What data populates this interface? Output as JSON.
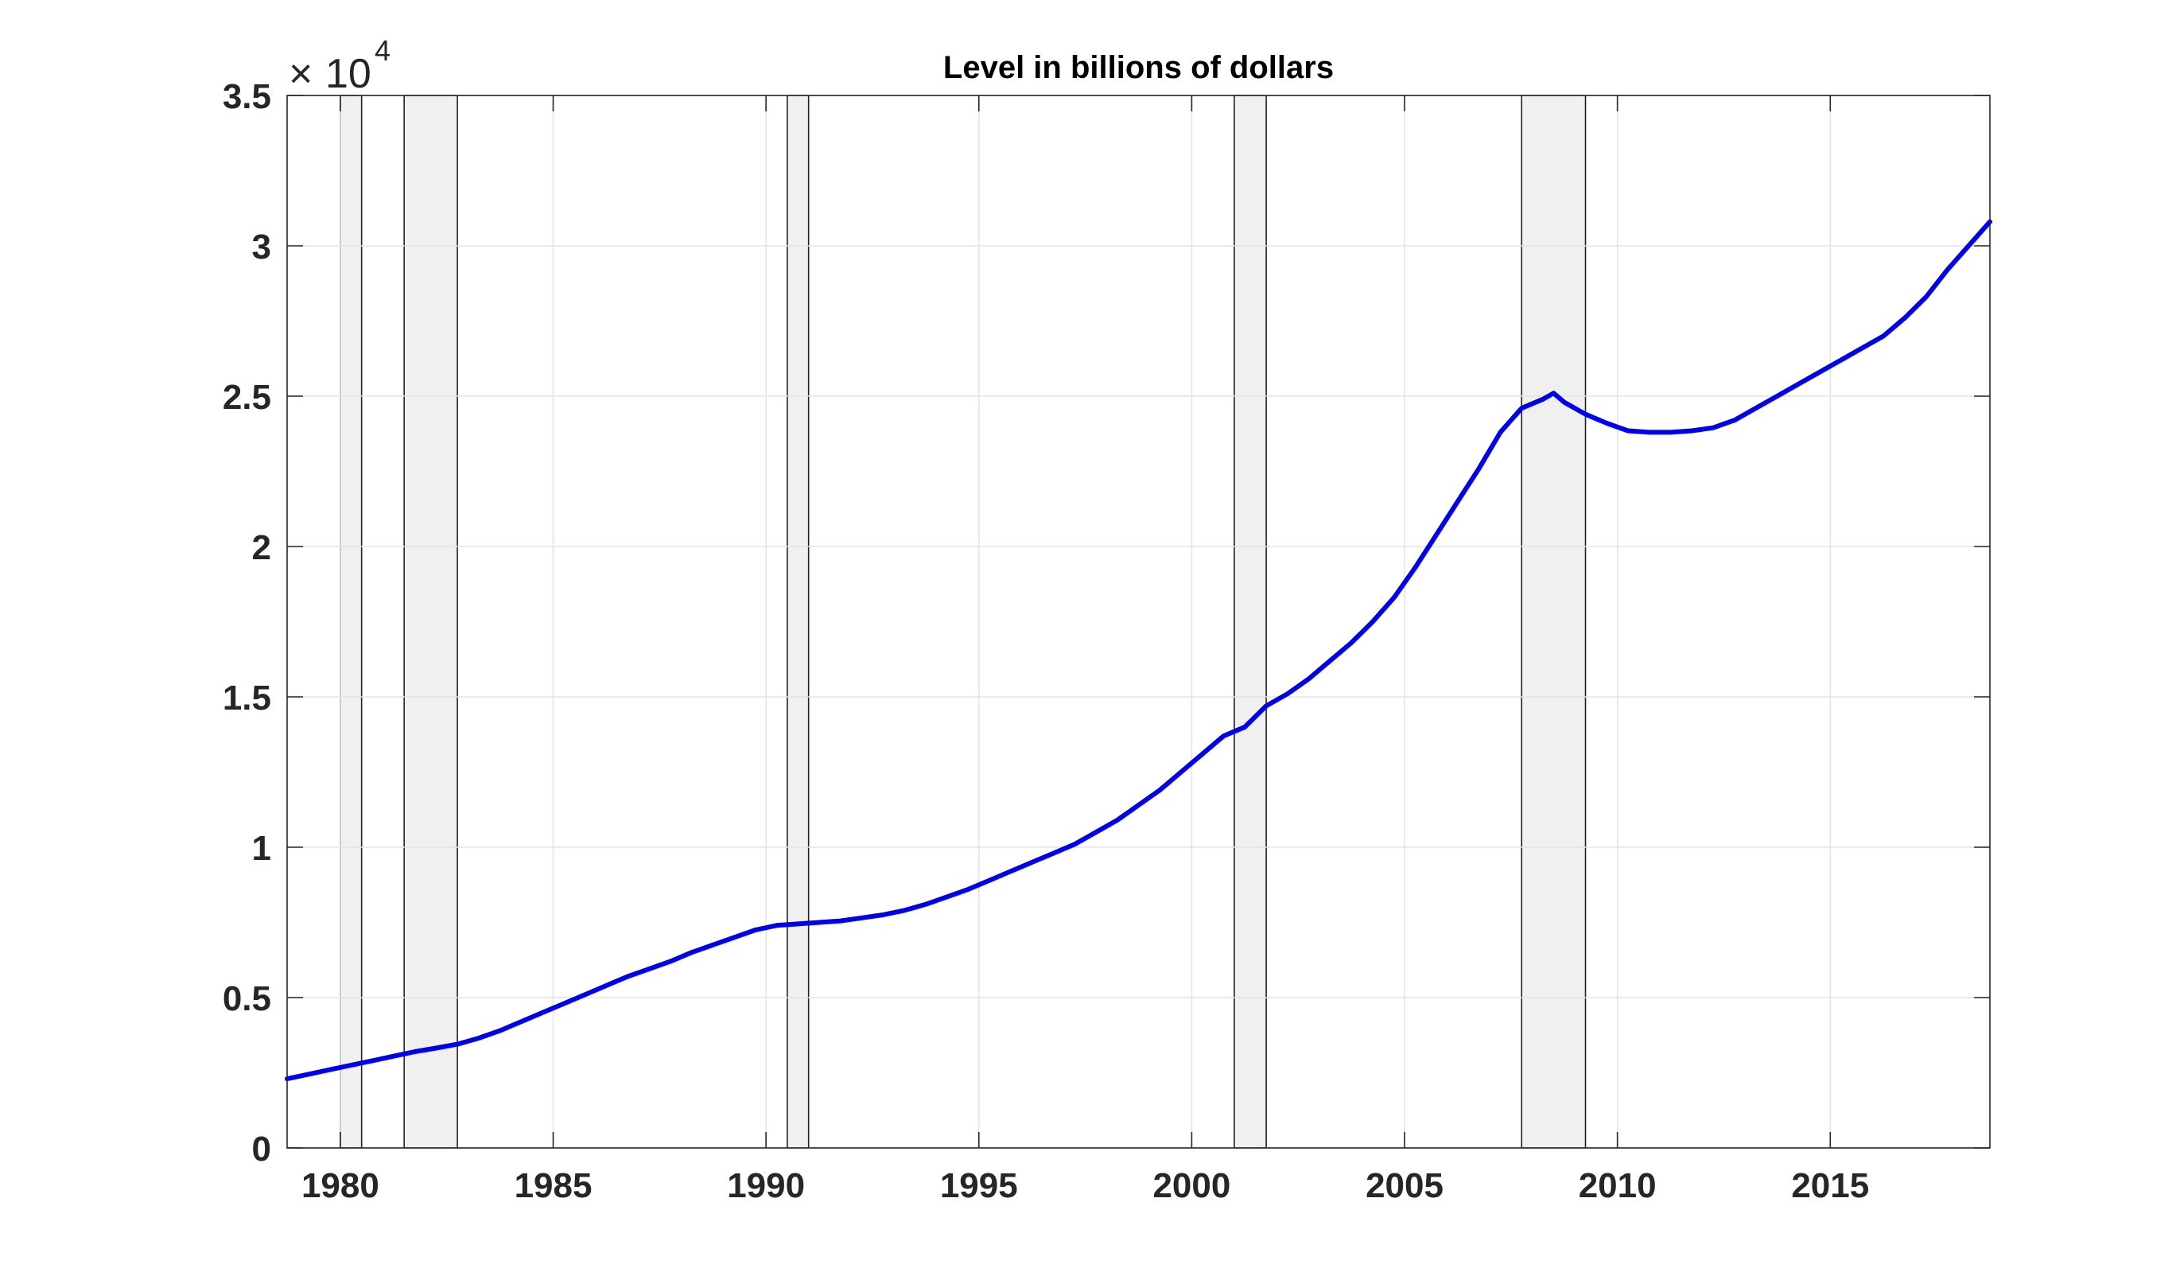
{
  "chart_data": {
    "type": "line",
    "title": "Level in billions of dollars",
    "xlabel": "",
    "ylabel": "",
    "exponent_base": "10",
    "exponent_power": "4",
    "xlim": [
      1978.75,
      2018.75
    ],
    "ylim": [
      0,
      3.5
    ],
    "x_ticks": [
      1980,
      1985,
      1990,
      1995,
      2000,
      2005,
      2010,
      2015
    ],
    "x_tick_labels": [
      "1980",
      "1985",
      "1990",
      "1995",
      "2000",
      "2005",
      "2010",
      "2015"
    ],
    "y_ticks": [
      0,
      0.5,
      1,
      1.5,
      2,
      2.5,
      3,
      3.5
    ],
    "y_tick_labels": [
      "0",
      "0.5",
      "1",
      "1.5",
      "2",
      "2.5",
      "3",
      "3.5"
    ],
    "grid": true,
    "line_color": "#0000ee",
    "recession_color": "#f0f0f0",
    "recessions": [
      [
        1980.0,
        1980.5
      ],
      [
        1981.5,
        1982.75
      ],
      [
        1990.5,
        1991.0
      ],
      [
        2001.0,
        2001.75
      ],
      [
        2007.75,
        2009.25
      ]
    ],
    "series": [
      {
        "x": [
          1978.75,
          1979.25,
          1979.75,
          1980.25,
          1980.75,
          1981.25,
          1981.75,
          1982.25,
          1982.75,
          1983.25,
          1983.75,
          1984.25,
          1984.75,
          1985.25,
          1985.75,
          1986.25,
          1986.75,
          1987.25,
          1987.75,
          1988.25,
          1988.75,
          1989.25,
          1989.75,
          1990.25,
          1990.75,
          1991.25,
          1991.75,
          1992.25,
          1992.75,
          1993.25,
          1993.75,
          1994.25,
          1994.75,
          1995.25,
          1995.75,
          1996.25,
          1996.75,
          1997.25,
          1997.75,
          1998.25,
          1998.75,
          1999.25,
          1999.75,
          2000.25,
          2000.75,
          2001.25,
          2001.75,
          2002.25,
          2002.75,
          2003.25,
          2003.75,
          2004.25,
          2004.75,
          2005.25,
          2005.75,
          2006.25,
          2006.75,
          2007.25,
          2007.75,
          2008.25,
          2008.5,
          2008.75,
          2009.25,
          2009.75,
          2010.25,
          2010.75,
          2011.25,
          2011.75,
          2012.25,
          2012.75,
          2013.25,
          2013.75,
          2014.25,
          2014.75,
          2015.25,
          2015.75,
          2016.25,
          2016.75,
          2017.25,
          2017.75,
          2018.25,
          2018.75
        ],
        "values": [
          0.23,
          0.245,
          0.26,
          0.275,
          0.29,
          0.305,
          0.32,
          0.332,
          0.345,
          0.365,
          0.39,
          0.42,
          0.45,
          0.48,
          0.51,
          0.54,
          0.57,
          0.595,
          0.62,
          0.65,
          0.675,
          0.7,
          0.725,
          0.74,
          0.745,
          0.75,
          0.755,
          0.765,
          0.775,
          0.79,
          0.81,
          0.835,
          0.86,
          0.89,
          0.92,
          0.95,
          0.98,
          1.01,
          1.05,
          1.09,
          1.14,
          1.19,
          1.25,
          1.31,
          1.37,
          1.4,
          1.47,
          1.51,
          1.56,
          1.62,
          1.68,
          1.75,
          1.83,
          1.93,
          2.04,
          2.15,
          2.26,
          2.38,
          2.46,
          2.49,
          2.51,
          2.48,
          2.44,
          2.41,
          2.385,
          2.38,
          2.38,
          2.385,
          2.395,
          2.42,
          2.46,
          2.5,
          2.54,
          2.58,
          2.62,
          2.66,
          2.7,
          2.76,
          2.83,
          2.92,
          3.0,
          3.08
        ]
      }
    ]
  }
}
